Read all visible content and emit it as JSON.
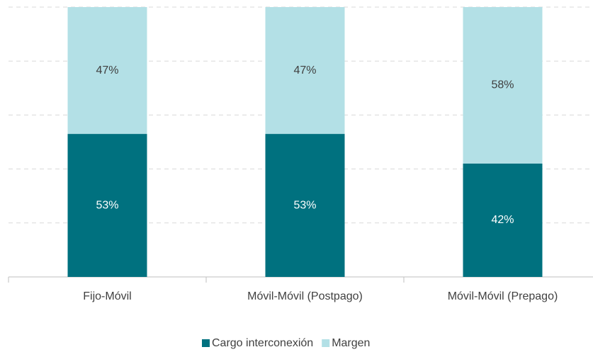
{
  "chart_data": {
    "type": "stacked_bar",
    "categories": [
      "Fijo-Móvil",
      "Móvil-Móvil (Postpago)",
      "Móvil-Móvil (Prepago)"
    ],
    "series": [
      {
        "name": "Cargo interconexión",
        "color": "#00717f",
        "values": [
          53,
          53,
          42
        ],
        "value_labels": [
          "53%",
          "53%",
          "42%"
        ]
      },
      {
        "name": "Margen",
        "color": "#b3e0e6",
        "values": [
          47,
          47,
          58
        ],
        "value_labels": [
          "47%",
          "47%",
          "58%"
        ]
      }
    ],
    "ylim": [
      0,
      100
    ],
    "yticks": [
      0,
      20,
      40,
      60,
      80,
      100
    ],
    "grid": true
  }
}
